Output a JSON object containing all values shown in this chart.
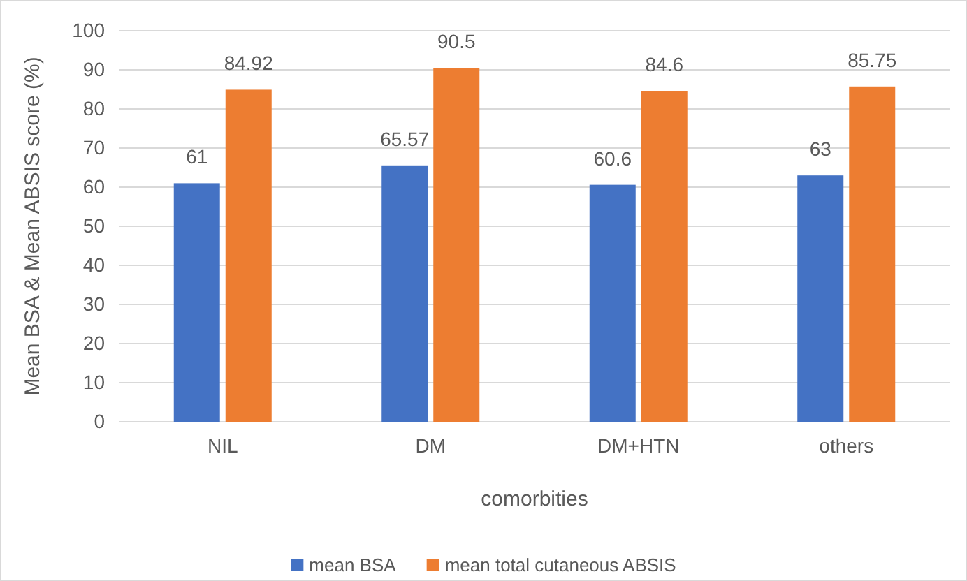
{
  "chart_data": {
    "type": "bar",
    "xlabel": "comorbities",
    "ylabel": "Mean BSA & Mean ABSIS score (%)",
    "categories": [
      "NIL",
      "DM",
      "DM+HTN",
      "others"
    ],
    "series": [
      {
        "name": "mean BSA",
        "color": "#4472c4",
        "values": [
          61,
          65.57,
          60.6,
          63
        ]
      },
      {
        "name": "mean total cutaneous ABSIS",
        "color": "#ed7d31",
        "values": [
          84.92,
          90.5,
          84.6,
          85.75
        ]
      }
    ],
    "ylim": [
      0,
      100
    ],
    "yticks": [
      0,
      10,
      20,
      30,
      40,
      50,
      60,
      70,
      80,
      90,
      100
    ],
    "grid": "y",
    "legend": "bottom",
    "data_labels": true
  }
}
